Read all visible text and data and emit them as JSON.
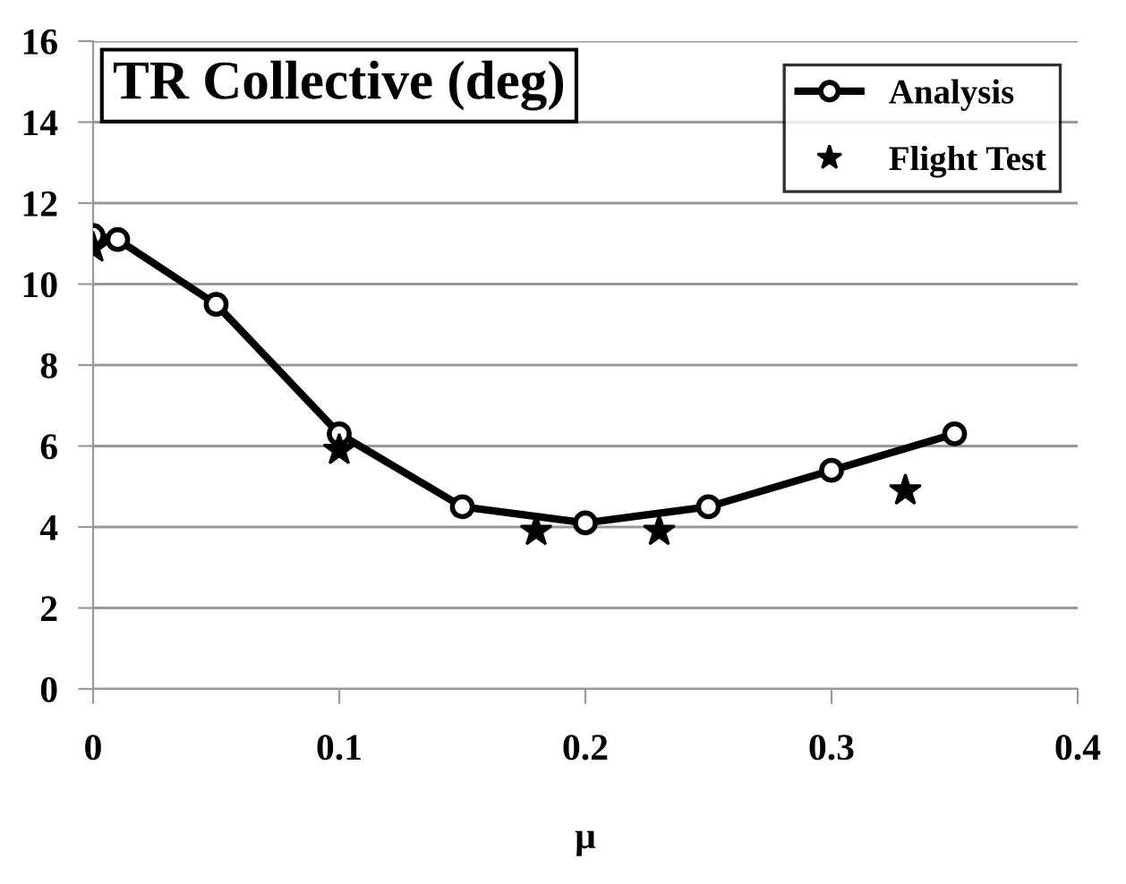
{
  "chart_data": {
    "type": "line",
    "title": "TR Collective (deg)",
    "xlabel": "μ",
    "xlim": [
      0,
      0.4
    ],
    "xticks": [
      0,
      0.1,
      0.2,
      0.3,
      0.4
    ],
    "ylim": [
      0,
      16
    ],
    "yticks": [
      0,
      2,
      4,
      6,
      8,
      10,
      12,
      14,
      16
    ],
    "grid": "y",
    "legend": "top right",
    "series": [
      {
        "name": "Analysis",
        "color": "#000000",
        "marker": "circle",
        "x": [
          0,
          0.01,
          0.05,
          0.1,
          0.15,
          0.2,
          0.25,
          0.3,
          0.35
        ],
        "values": [
          11.2,
          11.1,
          9.5,
          6.3,
          4.5,
          4.1,
          4.5,
          5.4,
          6.3
        ]
      },
      {
        "name": "Flight Test",
        "type": "scatter",
        "color": "#000000",
        "marker": "star",
        "x": [
          0,
          0.1,
          0.18,
          0.23,
          0.33
        ],
        "values": [
          10.9,
          5.9,
          3.9,
          3.9,
          4.9
        ]
      }
    ]
  }
}
